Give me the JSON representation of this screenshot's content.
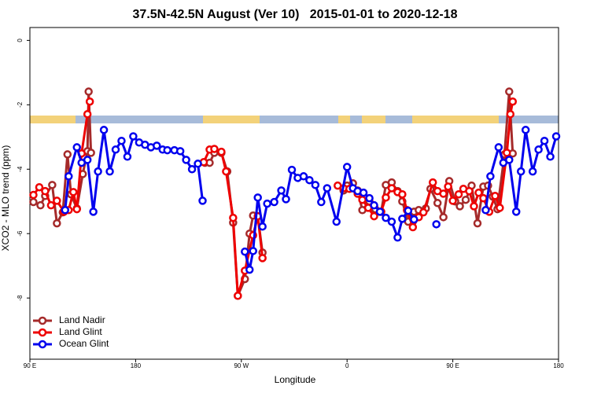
{
  "chart_data": {
    "type": "line",
    "title": "37.5N-42.5N August (Ver 10)   2015-01-01 to 2020-12-18",
    "x_label": "Longitude",
    "y_label": "XCO2 - MLO trend (ppm)",
    "xlim": [
      90,
      540
    ],
    "ylim": [
      -9.9,
      0.4
    ],
    "xticks": [
      {
        "value": 90,
        "label": "90 E"
      },
      180,
      {
        "value": 270,
        "label": "90 W"
      },
      {
        "value": 360,
        "label": "0"
      },
      {
        "value": 450,
        "label": "90 E"
      },
      {
        "value": 540,
        "label": "180"
      }
    ],
    "yticks": [
      0,
      -2,
      -4,
      -6,
      -8
    ],
    "legend": "bottom-left",
    "series": [
      {
        "name": "Land Nadir",
        "color": "#a52a2a",
        "x": [
          93,
          99,
          103,
          109,
          113,
          118,
          122,
          125,
          130,
          135,
          139,
          140,
          142,
          null,
          239,
          243,
          247,
          253,
          258,
          263,
          267,
          273,
          277,
          280,
          284,
          288,
          null,
          357,
          360,
          365,
          369,
          373,
          379,
          384,
          389,
          393,
          398,
          403,
          407,
          412,
          417,
          421,
          427,
          431,
          437,
          442,
          447,
          452,
          456,
          461,
          466,
          471,
          476,
          480,
          484,
          488,
          494,
          498,
          501
        ],
        "values": [
          -5.02,
          -5.12,
          -4.83,
          -4.49,
          -5.68,
          -5.34,
          -3.54,
          -4.78,
          -5.22,
          -4.15,
          -3.44,
          -1.59,
          -3.49,
          null,
          -3.8,
          -3.8,
          -3.49,
          -3.49,
          -4.07,
          -5.66,
          -7.93,
          -7.41,
          -6.0,
          -5.44,
          -5.46,
          -6.59,
          null,
          -4.66,
          -4.51,
          -4.44,
          -4.66,
          -5.27,
          -5.0,
          -5.24,
          -5.32,
          -4.49,
          -4.41,
          -4.68,
          -5.0,
          -5.63,
          -5.32,
          -5.27,
          -5.22,
          -4.61,
          -5.05,
          -5.49,
          -4.37,
          -5.0,
          -5.15,
          -4.95,
          -4.51,
          -5.68,
          -4.54,
          -4.51,
          -4.85,
          -5.24,
          -3.54,
          -1.59,
          -3.51
        ]
      },
      {
        "name": "Land Glint",
        "color": "#ee0000",
        "x": [
          93,
          98,
          103,
          108,
          113,
          119,
          123,
          127,
          130,
          134,
          139,
          141,
          null,
          238,
          243,
          247,
          253,
          257,
          263,
          267,
          273,
          280,
          284,
          288,
          null,
          352,
          357,
          362,
          369,
          373,
          378,
          383,
          389,
          393,
          398,
          403,
          407,
          411,
          416,
          421,
          425,
          433,
          437,
          442,
          446,
          450,
          455,
          459,
          464,
          468,
          472,
          476,
          481,
          486,
          490,
          496,
          499,
          501
        ],
        "values": [
          -4.8,
          -4.56,
          -4.68,
          -5.12,
          -4.98,
          -5.32,
          -5.27,
          -4.71,
          -5.24,
          -3.51,
          -2.29,
          -1.9,
          null,
          -3.78,
          -3.39,
          -3.37,
          -3.46,
          -4.07,
          -5.51,
          -7.93,
          -7.15,
          -6.05,
          -5.46,
          -6.76,
          null,
          -4.51,
          -4.59,
          -4.61,
          -4.76,
          -4.95,
          -5.2,
          -5.46,
          -5.32,
          -4.88,
          -4.59,
          -4.71,
          -4.78,
          -5.27,
          -5.8,
          -5.49,
          -5.34,
          -4.41,
          -4.68,
          -4.76,
          -4.54,
          -4.98,
          -4.78,
          -4.61,
          -4.68,
          -5.15,
          -4.73,
          -4.9,
          -5.32,
          -4.83,
          -5.2,
          -3.49,
          -2.29,
          -1.9
        ]
      },
      {
        "name": "Ocean Glint",
        "color": "#0000ee",
        "x": [
          120,
          123,
          130,
          134,
          139,
          144,
          148,
          153,
          158,
          163,
          168,
          173,
          178,
          183,
          188,
          193,
          198,
          203,
          207,
          213,
          218,
          223,
          228,
          233,
          237,
          null,
          273,
          277,
          280,
          284,
          288,
          292,
          298,
          304,
          308,
          313,
          318,
          323,
          328,
          333,
          338,
          343,
          351,
          360,
          365,
          369,
          374,
          379,
          383,
          388,
          393,
          398,
          403,
          407,
          412,
          417,
          null,
          436,
          null,
          478,
          482,
          489,
          493,
          498,
          504,
          508,
          512,
          518,
          523,
          528,
          533,
          538
        ],
        "values": [
          -5.27,
          -4.22,
          -3.32,
          -3.8,
          -3.71,
          -5.32,
          -4.07,
          -2.78,
          -4.07,
          -3.39,
          -3.12,
          -3.61,
          -2.98,
          -3.17,
          -3.24,
          -3.32,
          -3.27,
          -3.39,
          -3.41,
          -3.41,
          -3.44,
          -3.71,
          -4.0,
          -3.83,
          -4.98,
          null,
          -6.56,
          -7.12,
          -6.54,
          -4.88,
          -5.78,
          -5.07,
          -5.02,
          -4.66,
          -4.93,
          -4.02,
          -4.27,
          -4.22,
          -4.34,
          -4.49,
          -5.02,
          -4.59,
          -5.63,
          -3.93,
          -4.59,
          -4.68,
          -4.73,
          -4.9,
          -5.12,
          -5.32,
          -5.51,
          -5.63,
          -6.12,
          -5.54,
          -5.29,
          -5.56,
          null,
          -5.71,
          null,
          -5.27,
          -4.22,
          -3.32,
          -3.8,
          -3.71,
          -5.32,
          -4.07,
          -2.78,
          -4.07,
          -3.39,
          -3.12,
          -3.61,
          -2.98
        ]
      }
    ]
  }
}
